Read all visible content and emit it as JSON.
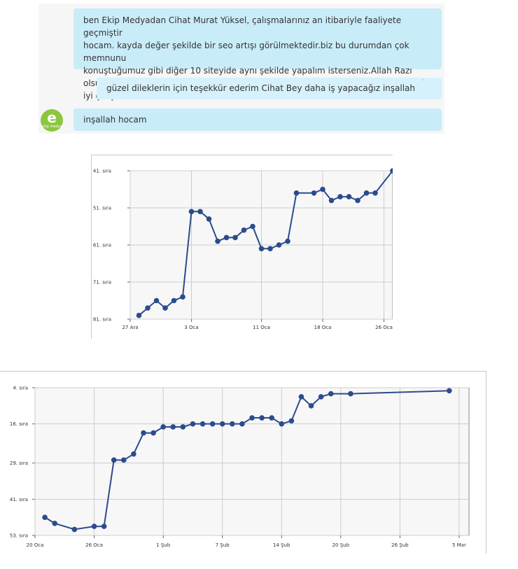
{
  "chat": {
    "message1": "ben Ekip Medyadan Cihat Murat Yüksel, çalışmalarınız  an itibariyle faaliyete geçmiştir\nhocam. kayda değer şekilde bir seo artışı görülmektedir.biz bu durumdan çok memnunu\nkonuştuğumuz gibi diğer 10 siteyide aynı şekilde yapalım isterseniz.Allah Razı olsun tekrar\niyi çalışmalar",
    "message2": "güzel dileklerin için teşekkür ederim Cihat Bey daha iş yapacağız inşallah",
    "message3": "inşallah hocam",
    "logo_text": "ekip medya",
    "logo_letter": "e"
  },
  "colors": {
    "line": "#2b4c8c",
    "bubble": "#c9ecf9",
    "plot_bg": "#f7f7f7",
    "grid": "#cccccc"
  },
  "chart_data": [
    {
      "type": "line",
      "yreversed": true,
      "ylim": [
        41,
        81
      ],
      "yticks": [
        41,
        51,
        61,
        71,
        81
      ],
      "ytick_labels": [
        "41. sıra",
        "51. sıra",
        "61. sıra",
        "71. sıra",
        "81. sıra"
      ],
      "xlim": [
        0,
        30
      ],
      "xticks": [
        0,
        7,
        15,
        22,
        29
      ],
      "xtick_labels": [
        "27 Ara",
        "3 Oca",
        "11 Oca",
        "18 Oca",
        "26 Oca"
      ],
      "grid": true,
      "series": [
        {
          "x": [
            1,
            2,
            3,
            4,
            5,
            6,
            7,
            8,
            9,
            10,
            11,
            12,
            13,
            14,
            15,
            16,
            17,
            18,
            19,
            21,
            22,
            23,
            24,
            25,
            26,
            27,
            28,
            30
          ],
          "y": [
            80,
            78,
            76,
            78,
            76,
            75,
            52,
            52,
            54,
            60,
            59,
            59,
            57,
            56,
            62,
            62,
            61,
            60,
            47,
            47,
            46,
            49,
            48,
            48,
            49,
            47,
            47,
            41
          ]
        }
      ]
    },
    {
      "type": "line",
      "yreversed": true,
      "ylim": [
        4,
        53
      ],
      "yticks": [
        4,
        16,
        29,
        41,
        53
      ],
      "ytick_labels": [
        "4. sıra",
        "16. sıra",
        "29. sıra",
        "41. sıra",
        "53. sıra"
      ],
      "xlim": [
        0,
        44
      ],
      "xticks": [
        0,
        6,
        13,
        19,
        25,
        31,
        37,
        43
      ],
      "xtick_labels": [
        "20 Oca",
        "26 Oca",
        "1 Şub",
        "7 Şub",
        "14 Şub",
        "20 Şub",
        "26 Şub",
        "5 Mar"
      ],
      "grid": true,
      "series": [
        {
          "x": [
            1,
            2,
            4,
            6,
            7,
            8,
            9,
            10,
            11,
            12,
            13,
            14,
            15,
            16,
            17,
            18,
            19,
            20,
            21,
            22,
            23,
            24,
            25,
            26,
            27,
            28,
            29,
            30,
            32,
            42
          ],
          "y": [
            47,
            49,
            51,
            50,
            50,
            28,
            28,
            26,
            19,
            19,
            17,
            17,
            17,
            16,
            16,
            16,
            16,
            16,
            16,
            14,
            14,
            14,
            16,
            15,
            7,
            10,
            7,
            6,
            6,
            5
          ]
        }
      ]
    }
  ]
}
